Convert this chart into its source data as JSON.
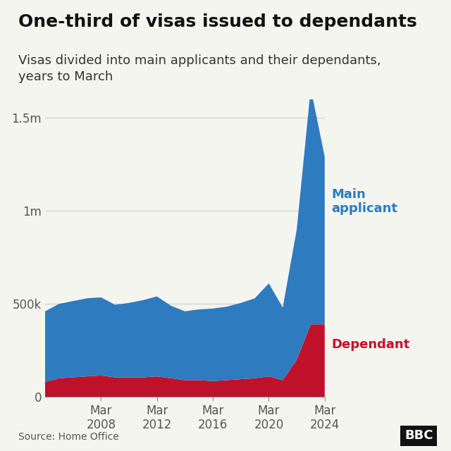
{
  "title": "One-third of visas issued to dependants",
  "subtitle": "Visas divided into main applicants and their dependants,\nyears to March",
  "source": "Source: Home Office",
  "bbc_logo": "BBC",
  "background_color": "#f5f5f0",
  "main_color": "#2e7bbf",
  "dependant_color": "#c0112a",
  "years": [
    2004,
    2005,
    2006,
    2007,
    2008,
    2009,
    2010,
    2011,
    2012,
    2013,
    2014,
    2015,
    2016,
    2017,
    2018,
    2019,
    2020,
    2021,
    2022,
    2023,
    2024
  ],
  "main_applicant": [
    380000,
    400000,
    410000,
    420000,
    420000,
    390000,
    400000,
    415000,
    430000,
    390000,
    370000,
    380000,
    390000,
    395000,
    410000,
    430000,
    500000,
    390000,
    700000,
    1270000,
    900000
  ],
  "dependant": [
    80000,
    100000,
    105000,
    110000,
    115000,
    105000,
    105000,
    105000,
    110000,
    100000,
    90000,
    90000,
    85000,
    90000,
    95000,
    100000,
    110000,
    90000,
    200000,
    390000,
    390000
  ],
  "yticks": [
    0,
    500000,
    1000000,
    1500000
  ],
  "ytick_labels": [
    "0",
    "500k",
    "1m",
    "1.5m"
  ],
  "ylim": [
    0,
    1600000
  ],
  "xtick_years": [
    2008,
    2012,
    2016,
    2020,
    2024
  ],
  "label_main": "Main\napplicant",
  "label_dependant": "Dependant",
  "title_fontsize": 18,
  "subtitle_fontsize": 13,
  "tick_fontsize": 12,
  "annotation_fontsize": 13,
  "bbc_text_color": "white",
  "bbc_box_color": "#111111"
}
